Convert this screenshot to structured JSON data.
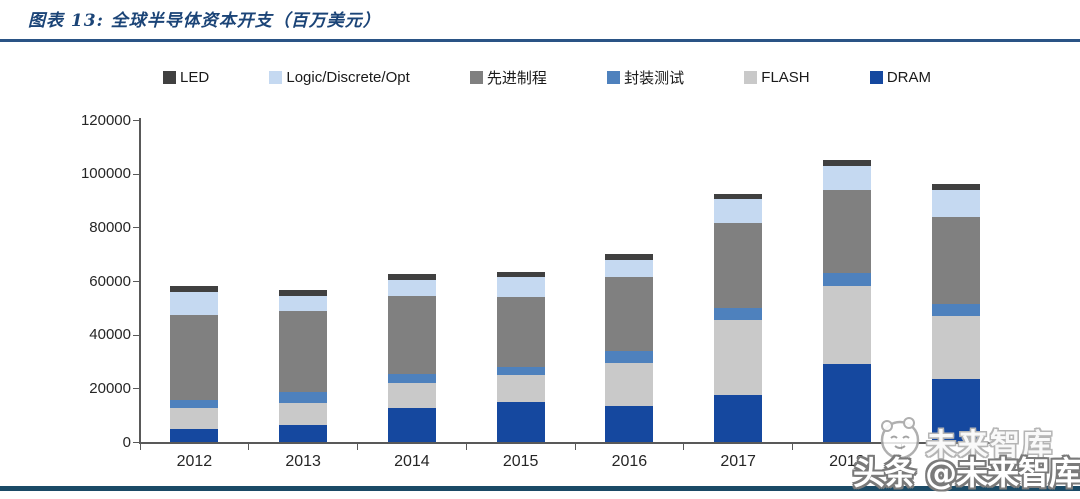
{
  "header": {
    "title": "图表 13:  全球半导体资本开支（百万美元）"
  },
  "chart_data": {
    "type": "bar",
    "stacked": true,
    "title": "全球半导体资本开支（百万美元）",
    "unit": "百万美元",
    "categories": [
      "2012",
      "2013",
      "2014",
      "2015",
      "2016",
      "2017",
      "2018",
      ""
    ],
    "series": [
      {
        "key": "dram",
        "name": "DRAM",
        "color": "#15489F",
        "values": [
          5000,
          6500,
          12500,
          15000,
          13500,
          17500,
          29000,
          23500
        ]
      },
      {
        "key": "flash",
        "name": "FLASH",
        "color": "#C9C9C9",
        "values": [
          7500,
          8000,
          9500,
          10000,
          16000,
          28000,
          29000,
          23500
        ]
      },
      {
        "key": "packaging-testing",
        "name": "封装测试",
        "color": "#4E81BD",
        "values": [
          3000,
          4000,
          3500,
          3000,
          4500,
          4500,
          5000,
          4500
        ]
      },
      {
        "key": "advanced-process",
        "name": "先进制程",
        "color": "#808080",
        "values": [
          32000,
          30500,
          29000,
          26000,
          27500,
          31500,
          31000,
          32500
        ]
      },
      {
        "key": "logic-discrete-opt",
        "name": "Logic/Discrete/Opt",
        "color": "#C5D9F1",
        "values": [
          8500,
          5500,
          6000,
          7500,
          6500,
          9000,
          9000,
          10000
        ]
      },
      {
        "key": "led",
        "name": "LED",
        "color": "#404040",
        "values": [
          2000,
          2000,
          2000,
          2000,
          2000,
          2000,
          2000,
          2000
        ]
      }
    ],
    "legend_order": [
      "LED",
      "Logic/Discrete/Opt",
      "先进制程",
      "封装测试",
      "FLASH",
      "DRAM"
    ],
    "legend_position": "top",
    "ylim": [
      0,
      120000
    ],
    "ytick_step": 20000,
    "ytick_labels": [
      "120000",
      "100000",
      "80000",
      "60000",
      "40000",
      "20000",
      "0"
    ],
    "grid": false
  },
  "watermark": {
    "brand_small": "未来智库",
    "brand_main": "头条 @未来智库"
  },
  "colors": {
    "title_text": "#1B4477",
    "title_rule": "#2A5385",
    "bottom_rule": "#1A4A66",
    "axis": "#595959",
    "tick_text": "#262626"
  }
}
